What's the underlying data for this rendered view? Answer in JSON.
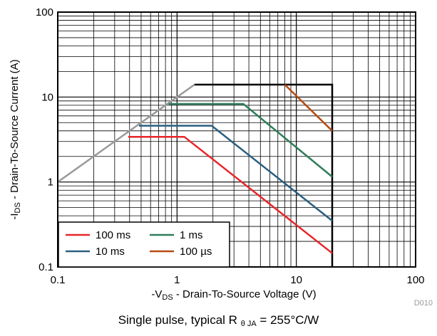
{
  "chart_data": {
    "type": "line",
    "x_scale": "log",
    "y_scale": "log",
    "xlim": [
      0.1,
      100
    ],
    "ylim": [
      0.1,
      100
    ],
    "grid": true,
    "legend_position": "bottom-left",
    "xlabel": {
      "prefix": "-V",
      "sub": "DS",
      "suffix": " - Drain-To-Source Voltage (V)"
    },
    "ylabel": {
      "prefix": "-I",
      "sub": "DS",
      "suffix": " - Drain-To-Source Current (A)"
    },
    "x_ticks": [
      {
        "value": 0.1,
        "label": "0.1"
      },
      {
        "value": 1,
        "label": "1"
      },
      {
        "value": 10,
        "label": "10"
      },
      {
        "value": 100,
        "label": "100"
      }
    ],
    "y_ticks": [
      {
        "value": 0.1,
        "label": "0.1"
      },
      {
        "value": 1,
        "label": "1"
      },
      {
        "value": 10,
        "label": "10"
      },
      {
        "value": 100,
        "label": "100"
      }
    ],
    "series": [
      {
        "name": "",
        "color": "#9a9a9a",
        "x": [
          0.1,
          1.4
        ],
        "y": [
          1.0,
          14.0
        ]
      },
      {
        "name": "",
        "color": "#000000",
        "x": [
          1.4,
          20,
          20
        ],
        "y": [
          14.0,
          14.0,
          0.1
        ]
      },
      {
        "name": "100 ms",
        "color": "#e8262a",
        "x": [
          0.39,
          1.15,
          20
        ],
        "y": [
          3.4,
          3.4,
          0.145
        ]
      },
      {
        "name": "10 ms",
        "color": "#2a5f80",
        "x": [
          0.48,
          1.95,
          20
        ],
        "y": [
          4.6,
          4.6,
          0.35
        ]
      },
      {
        "name": "1 ms",
        "color": "#2f7d5a",
        "x": [
          0.85,
          3.6,
          20
        ],
        "y": [
          8.3,
          8.3,
          1.15
        ]
      },
      {
        "name": "100 µs",
        "color": "#b84a12",
        "x": [
          8.0,
          20
        ],
        "y": [
          14.0,
          4.0
        ]
      }
    ],
    "legend": [
      {
        "label": "100 ms",
        "color": "#e8262a"
      },
      {
        "label": "1 ms",
        "color": "#2f7d5a"
      },
      {
        "label": "10 ms",
        "color": "#2a5f80"
      },
      {
        "label": "100 µs",
        "color": "#b84a12"
      }
    ]
  },
  "figure_id": "D010",
  "caption": {
    "prefix": "Single pulse, typical R",
    "sub": "θ JA",
    "suffix": " = 255°C/W"
  }
}
